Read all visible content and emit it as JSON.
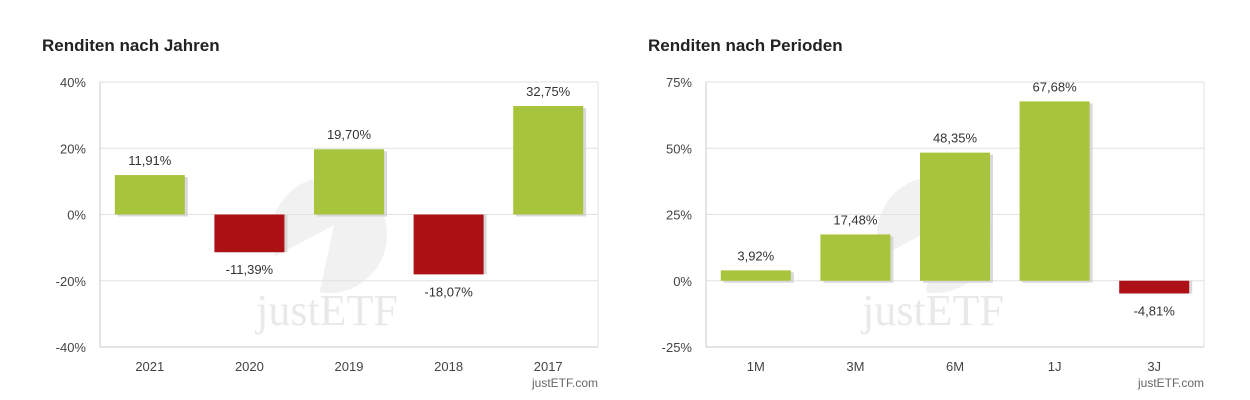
{
  "colors": {
    "positive": "#a8c43c",
    "negative": "#ad1116",
    "grid": "#e2e2e2",
    "axis": "#c8c8c8"
  },
  "watermark": "justETF",
  "chart_data": [
    {
      "type": "bar",
      "title": "Renditen nach Jahren",
      "credit": "justETF.com",
      "categories": [
        "2021",
        "2020",
        "2019",
        "2018",
        "2017"
      ],
      "values": [
        11.91,
        -11.39,
        19.7,
        -18.07,
        32.75
      ],
      "value_labels": [
        "11,91%",
        "-11,39%",
        "19,70%",
        "-18,07%",
        "32,75%"
      ],
      "ylim": [
        -40,
        40
      ],
      "yticks": [
        40,
        20,
        0,
        -20,
        -40
      ],
      "ytick_labels": [
        "40%",
        "20%",
        "0%",
        "-20%",
        "-40%"
      ],
      "xlabel": "",
      "ylabel": ""
    },
    {
      "type": "bar",
      "title": "Renditen nach Perioden",
      "credit": "justETF.com",
      "categories": [
        "1M",
        "3M",
        "6M",
        "1J",
        "3J"
      ],
      "values": [
        3.92,
        17.48,
        48.35,
        67.68,
        -4.81
      ],
      "value_labels": [
        "3,92%",
        "17,48%",
        "48,35%",
        "67,68%",
        "-4,81%"
      ],
      "ylim": [
        -25,
        75
      ],
      "yticks": [
        75,
        50,
        25,
        0,
        -25
      ],
      "ytick_labels": [
        "75%",
        "50%",
        "25%",
        "0%",
        "-25%"
      ],
      "xlabel": "",
      "ylabel": ""
    }
  ]
}
